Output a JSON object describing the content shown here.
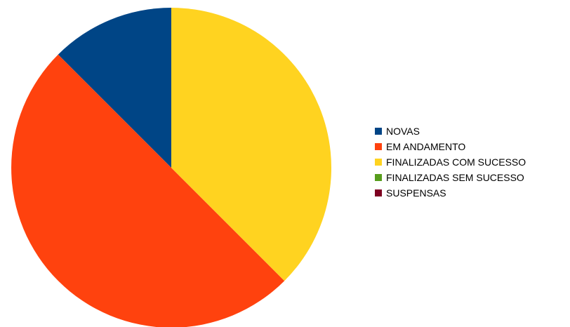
{
  "chart_data": {
    "type": "pie",
    "categories": [
      "NOVAS",
      "EM ANDAMENTO",
      "FINALIZADAS COM SUCESSO",
      "FINALIZADAS SEM SUCESSO",
      "SUSPENSAS"
    ],
    "values": [
      12.5,
      50,
      37.5,
      0,
      0
    ],
    "colors": [
      "#004586",
      "#ff420e",
      "#ffd320",
      "#579d1c",
      "#7e0021"
    ],
    "start_angle": "top",
    "direction": "counterclockwise",
    "legend_position": "right"
  }
}
